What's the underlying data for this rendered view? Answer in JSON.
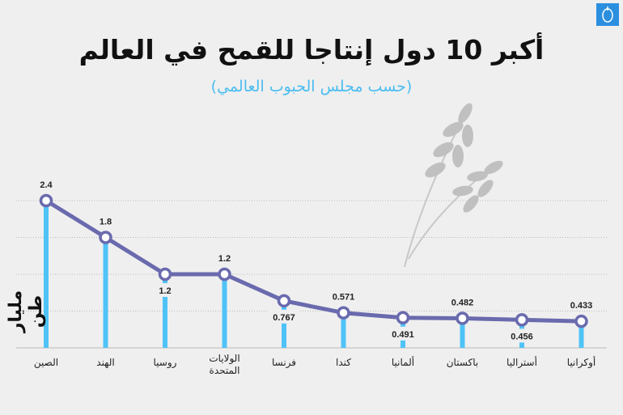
{
  "title": "أكبر 10 دول إنتاجا للقمح في العالم",
  "subtitle": "(حسب مجلس الحبوب العالمي)",
  "logo": "الجزيرة",
  "colors": {
    "line": "#6a6aae",
    "bars": "#4fc3f7",
    "subtitle": "#4bbdf0",
    "background": "#efefef"
  },
  "chart_data": {
    "type": "line",
    "ylabel": "مليار طن",
    "categories": [
      "الصين",
      "الهند",
      "روسيا",
      "الولايات المتحدة",
      "فرنسا",
      "كندا",
      "ألمانيا",
      "باكستان",
      "أستراليا",
      "أوكرانيا"
    ],
    "values": [
      2.4,
      1.8,
      1.2,
      1.2,
      0.767,
      0.571,
      0.491,
      0.482,
      0.456,
      0.433
    ],
    "labels": [
      "2.4",
      "1.8",
      "1.2",
      "1.2",
      "0.767",
      "0.571",
      "0.491",
      "0.482",
      "0.456",
      "0.433"
    ],
    "label_position": [
      "above",
      "above",
      "below",
      "above",
      "below",
      "above",
      "below",
      "above",
      "below",
      "above"
    ],
    "ylim": [
      0,
      2.4
    ],
    "grid": true,
    "gridline_step": 0.6
  }
}
